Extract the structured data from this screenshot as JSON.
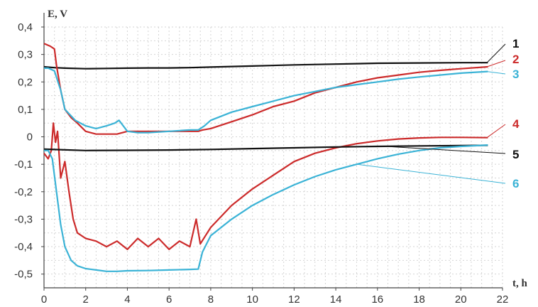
{
  "chart_data": {
    "type": "line",
    "title": "",
    "xlabel": "t, h",
    "ylabel": "E, V",
    "xlim": [
      0,
      22
    ],
    "ylim": [
      -0.55,
      0.4
    ],
    "x_ticks": [
      "0",
      "2",
      "4",
      "6",
      "8",
      "10",
      "12",
      "14",
      "16",
      "18",
      "20",
      "22"
    ],
    "y_ticks": [
      "0,4",
      "0,3",
      "0,2",
      "0,1",
      "0",
      "-0,1",
      "-0,2",
      "-0,3",
      "-0,4",
      "-0,5"
    ],
    "x_tick_values": [
      0,
      2,
      4,
      6,
      8,
      10,
      12,
      14,
      16,
      18,
      20,
      22
    ],
    "y_tick_values": [
      0.4,
      0.3,
      0.2,
      0.1,
      0,
      -0.1,
      -0.2,
      -0.3,
      -0.4,
      -0.5
    ],
    "grid": true,
    "series": [
      {
        "name": "1",
        "color": "#111111",
        "x": [
          0,
          0.5,
          1,
          2,
          3,
          4,
          5,
          6,
          7,
          8,
          10,
          12,
          14,
          16,
          18,
          20,
          21.3
        ],
        "y": [
          0.255,
          0.252,
          0.25,
          0.248,
          0.249,
          0.25,
          0.251,
          0.251,
          0.252,
          0.254,
          0.258,
          0.262,
          0.265,
          0.268,
          0.269,
          0.27,
          0.27
        ]
      },
      {
        "name": "2",
        "color": "#cc2b2b",
        "x": [
          0,
          0.3,
          0.5,
          0.6,
          0.8,
          1,
          1.3,
          1.6,
          2,
          2.5,
          3,
          3.5,
          4,
          5,
          6,
          7,
          7.4,
          7.6,
          8,
          9,
          10,
          11,
          12,
          13,
          14,
          15,
          16,
          17,
          18,
          19,
          20,
          21.3
        ],
        "y": [
          0.34,
          0.33,
          0.32,
          0.26,
          0.17,
          0.1,
          0.07,
          0.05,
          0.02,
          0.01,
          0.01,
          0.01,
          0.02,
          0.02,
          0.02,
          0.02,
          0.02,
          0.025,
          0.03,
          0.055,
          0.08,
          0.11,
          0.13,
          0.16,
          0.18,
          0.2,
          0.215,
          0.225,
          0.235,
          0.242,
          0.248,
          0.255
        ]
      },
      {
        "name": "3",
        "color": "#3bb3d6",
        "x": [
          0,
          0.2,
          0.5,
          0.8,
          1,
          1.5,
          2,
          2.5,
          3,
          3.4,
          3.6,
          3.8,
          4,
          4.5,
          5,
          6,
          7,
          7.4,
          7.7,
          8,
          9,
          10,
          11,
          12,
          13,
          14,
          15,
          16,
          17,
          18,
          19,
          20,
          21.3
        ],
        "y": [
          0.25,
          0.25,
          0.24,
          0.17,
          0.1,
          0.06,
          0.04,
          0.03,
          0.04,
          0.05,
          0.06,
          0.04,
          0.02,
          0.015,
          0.015,
          0.02,
          0.025,
          0.025,
          0.04,
          0.06,
          0.09,
          0.11,
          0.13,
          0.15,
          0.165,
          0.18,
          0.19,
          0.2,
          0.21,
          0.218,
          0.225,
          0.232,
          0.238
        ]
      },
      {
        "name": "4",
        "color": "#cc2b2b",
        "x": [
          0,
          0.2,
          0.35,
          0.45,
          0.55,
          0.65,
          0.8,
          1,
          1.2,
          1.4,
          1.6,
          2,
          2.5,
          3,
          3.5,
          4,
          4.5,
          5,
          5.5,
          6,
          6.5,
          7,
          7.3,
          7.5,
          8,
          9,
          10,
          11,
          12,
          13,
          14,
          15,
          16,
          17,
          18,
          19,
          20,
          21.3
        ],
        "y": [
          -0.06,
          -0.08,
          -0.05,
          0.05,
          -0.02,
          0.02,
          -0.15,
          -0.09,
          -0.2,
          -0.3,
          -0.35,
          -0.37,
          -0.38,
          -0.4,
          -0.38,
          -0.41,
          -0.37,
          -0.4,
          -0.37,
          -0.41,
          -0.38,
          -0.4,
          -0.3,
          -0.39,
          -0.33,
          -0.25,
          -0.19,
          -0.14,
          -0.09,
          -0.06,
          -0.04,
          -0.025,
          -0.015,
          -0.008,
          -0.004,
          -0.002,
          -0.002,
          -0.003
        ]
      },
      {
        "name": "5",
        "color": "#111111",
        "x": [
          0,
          2,
          4,
          6,
          8,
          10,
          12,
          14,
          16,
          18,
          20,
          21.3
        ],
        "y": [
          -0.045,
          -0.05,
          -0.049,
          -0.048,
          -0.046,
          -0.043,
          -0.04,
          -0.037,
          -0.035,
          -0.033,
          -0.032,
          -0.031
        ]
      },
      {
        "name": "6",
        "color": "#3bb3d6",
        "x": [
          0,
          0.2,
          0.4,
          0.6,
          0.8,
          1,
          1.3,
          1.6,
          2,
          2.5,
          3,
          3.5,
          4,
          5,
          6,
          7,
          7.4,
          7.6,
          8,
          9,
          10,
          11,
          12,
          13,
          14,
          15,
          16,
          17,
          18,
          19,
          20,
          21.3
        ],
        "y": [
          -0.05,
          -0.05,
          -0.08,
          -0.2,
          -0.32,
          -0.4,
          -0.45,
          -0.47,
          -0.48,
          -0.485,
          -0.49,
          -0.49,
          -0.488,
          -0.487,
          -0.485,
          -0.483,
          -0.482,
          -0.42,
          -0.36,
          -0.3,
          -0.25,
          -0.21,
          -0.175,
          -0.145,
          -0.12,
          -0.1,
          -0.08,
          -0.063,
          -0.05,
          -0.04,
          -0.035,
          -0.03
        ]
      }
    ]
  }
}
